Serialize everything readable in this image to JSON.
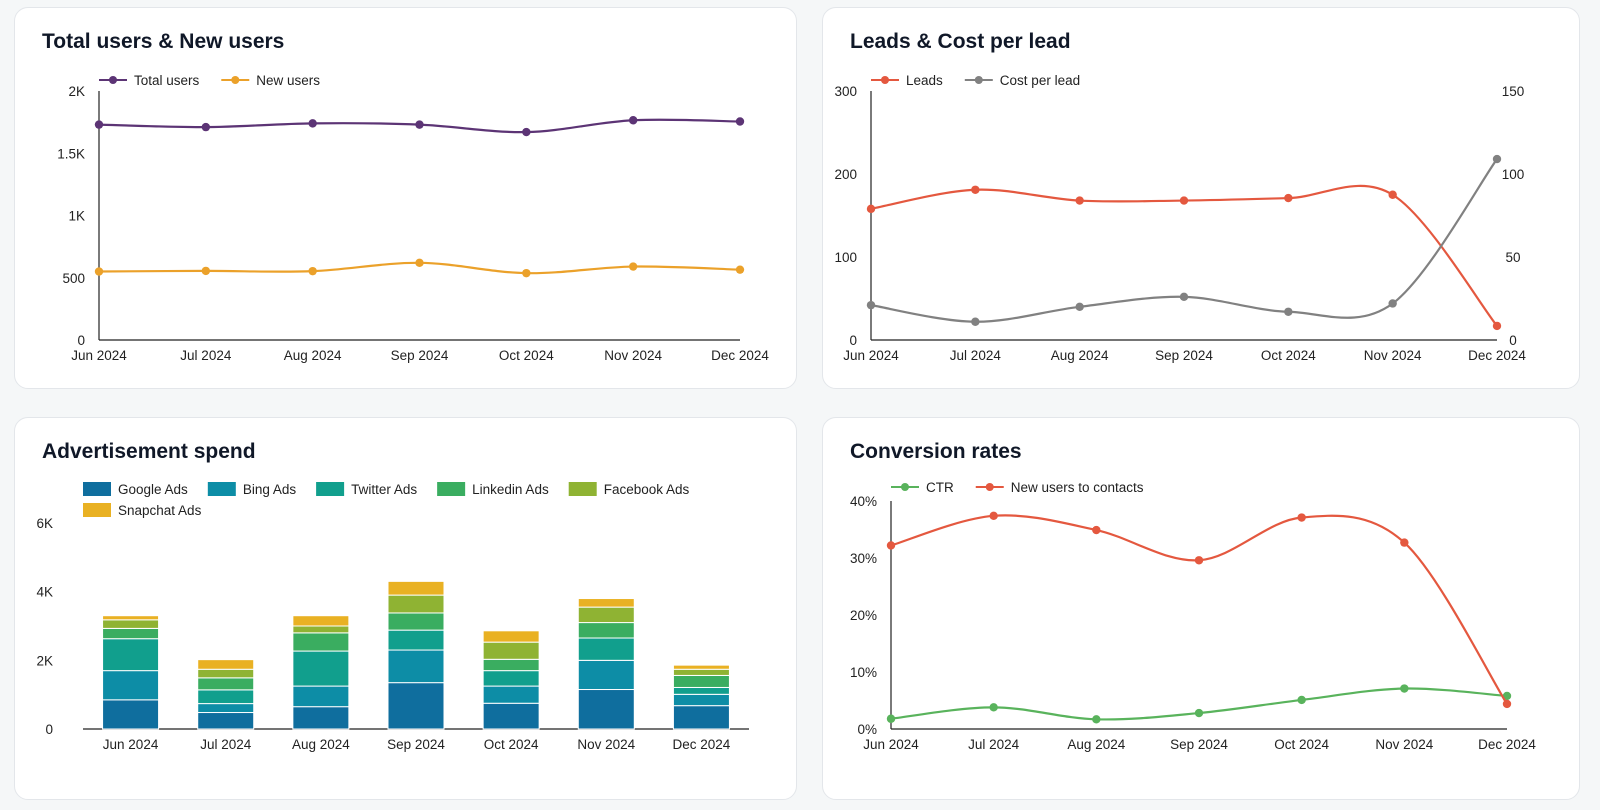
{
  "cards": {
    "users": {
      "title": "Total users & New users"
    },
    "leads": {
      "title": "Leads & Cost per lead"
    },
    "spend": {
      "title": "Advertisement spend"
    },
    "conv": {
      "title": "Conversion rates"
    }
  },
  "chart_data": [
    {
      "id": "users",
      "type": "line",
      "title": "Total users & New users",
      "legend_position": "top-left",
      "categories": [
        "Jun 2024",
        "Jul 2024",
        "Aug 2024",
        "Sep 2024",
        "Oct 2024",
        "Nov 2024",
        "Dec 2024"
      ],
      "y_ticks": [
        "0",
        "500",
        "1K",
        "1.5K",
        "2K"
      ],
      "ylim": [
        0,
        2000
      ],
      "grid": false,
      "series": [
        {
          "name": "Total users",
          "color": "#5c3475",
          "values": [
            1730,
            1710,
            1740,
            1730,
            1670,
            1765,
            1755
          ]
        },
        {
          "name": "New users",
          "color": "#eba12a",
          "values": [
            550,
            555,
            553,
            620,
            537,
            590,
            565
          ]
        }
      ]
    },
    {
      "id": "leads",
      "type": "line",
      "title": "Leads & Cost per lead",
      "legend_position": "top-left",
      "categories": [
        "Jun 2024",
        "Jul 2024",
        "Aug 2024",
        "Sep 2024",
        "Oct 2024",
        "Nov 2024",
        "Dec 2024"
      ],
      "y_ticks": [
        "0",
        "100",
        "200",
        "300"
      ],
      "y2_ticks": [
        "0",
        "50",
        "100",
        "150"
      ],
      "ylim": [
        0,
        300
      ],
      "y2lim": [
        0,
        150
      ],
      "grid": false,
      "series": [
        {
          "name": "Leads",
          "axis": "left",
          "color": "#e4583f",
          "values": [
            158,
            181,
            168,
            168,
            171,
            175,
            17
          ]
        },
        {
          "name": "Cost per lead",
          "axis": "right",
          "color": "#818181",
          "values": [
            21,
            11,
            20,
            26,
            17,
            22,
            109
          ]
        }
      ]
    },
    {
      "id": "spend",
      "type": "bar",
      "stacked": true,
      "title": "Advertisement spend",
      "legend_position": "top-left",
      "categories": [
        "Jun 2024",
        "Jul 2024",
        "Aug 2024",
        "Sep 2024",
        "Oct 2024",
        "Nov 2024",
        "Dec 2024"
      ],
      "y_ticks": [
        "0",
        "2K",
        "4K",
        "6K"
      ],
      "ylim": [
        0,
        6000
      ],
      "grid": false,
      "series": [
        {
          "name": "Google Ads",
          "color": "#0f6e9e",
          "values": [
            850,
            480,
            650,
            1350,
            750,
            1150,
            680
          ]
        },
        {
          "name": "Bing Ads",
          "color": "#0d8da6",
          "values": [
            850,
            260,
            600,
            950,
            500,
            850,
            330
          ]
        },
        {
          "name": "Twitter Ads",
          "color": "#119f8d",
          "values": [
            930,
            400,
            1020,
            580,
            450,
            650,
            200
          ]
        },
        {
          "name": "Linkedin Ads",
          "color": "#3aad60",
          "values": [
            300,
            350,
            530,
            500,
            330,
            450,
            350
          ]
        },
        {
          "name": "Facebook Ads",
          "color": "#8fb333",
          "values": [
            250,
            250,
            200,
            520,
            500,
            450,
            180
          ]
        },
        {
          "name": "Snapchat Ads",
          "color": "#e9b123",
          "values": [
            120,
            280,
            300,
            400,
            330,
            250,
            120
          ]
        }
      ]
    },
    {
      "id": "conv",
      "type": "line",
      "title": "Conversion rates",
      "legend_position": "top-left",
      "categories": [
        "Jun 2024",
        "Jul 2024",
        "Aug 2024",
        "Sep 2024",
        "Oct 2024",
        "Nov 2024",
        "Dec 2024"
      ],
      "y_ticks": [
        "0%",
        "10%",
        "20%",
        "30%",
        "40%"
      ],
      "ylim": [
        0,
        40
      ],
      "grid": false,
      "series": [
        {
          "name": "CTR",
          "color": "#59b35c",
          "values": [
            1.8,
            3.8,
            1.7,
            2.8,
            5.1,
            7.1,
            5.8
          ]
        },
        {
          "name": "New users to contacts",
          "color": "#e4583f",
          "values": [
            32.2,
            37.4,
            34.9,
            29.6,
            37.1,
            32.7,
            4.4
          ]
        }
      ]
    }
  ]
}
